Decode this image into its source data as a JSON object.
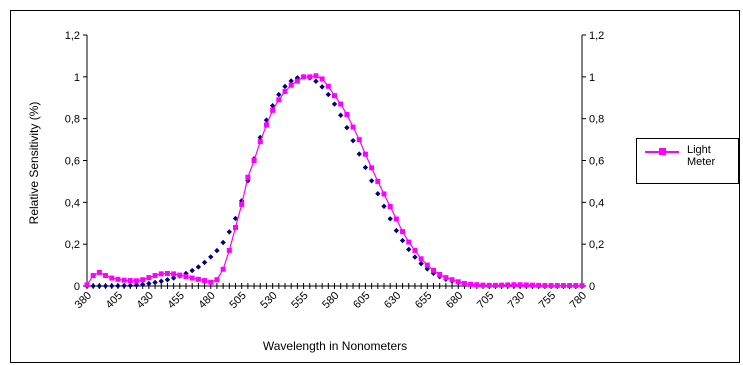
{
  "chart_data": {
    "type": "line",
    "title": "",
    "xlabel": "Wavelength in Nonometers",
    "ylabel": "Relative Sensitivity (%)",
    "xlim": [
      380,
      780
    ],
    "ylim": [
      0,
      1.2
    ],
    "x_tick_labels": [
      "380",
      "405",
      "430",
      "455",
      "480",
      "505",
      "530",
      "555",
      "580",
      "605",
      "630",
      "655",
      "680",
      "705",
      "730",
      "755",
      "780"
    ],
    "y_tick_labels": [
      "0",
      "0,2",
      "0,4",
      "0,6",
      "0,8",
      "1",
      "1,2"
    ],
    "grid": false,
    "legend": {
      "position": "right",
      "entries": [
        "Light Meter"
      ]
    },
    "x": [
      380,
      385,
      390,
      395,
      400,
      405,
      410,
      415,
      420,
      425,
      430,
      435,
      440,
      445,
      450,
      455,
      460,
      465,
      470,
      475,
      480,
      485,
      490,
      495,
      500,
      505,
      510,
      515,
      520,
      525,
      530,
      535,
      540,
      545,
      550,
      555,
      560,
      565,
      570,
      575,
      580,
      585,
      590,
      595,
      600,
      605,
      610,
      615,
      620,
      625,
      630,
      635,
      640,
      645,
      650,
      655,
      660,
      665,
      670,
      675,
      680,
      685,
      690,
      695,
      700,
      705,
      710,
      715,
      720,
      725,
      730,
      735,
      740,
      745,
      750,
      755,
      760,
      765,
      770,
      775,
      780
    ],
    "series": [
      {
        "name": "",
        "style": "markers",
        "color": "#000080",
        "values": [
          0.0,
          0.0001,
          0.0001,
          0.0002,
          0.0004,
          0.0006,
          0.0012,
          0.0022,
          0.004,
          0.0073,
          0.0116,
          0.0168,
          0.023,
          0.0298,
          0.038,
          0.048,
          0.06,
          0.0739,
          0.091,
          0.1126,
          0.139,
          0.1693,
          0.208,
          0.2586,
          0.323,
          0.4073,
          0.503,
          0.6082,
          0.71,
          0.7932,
          0.862,
          0.9149,
          0.954,
          0.9803,
          0.995,
          1.0,
          0.995,
          0.9786,
          0.952,
          0.9154,
          0.87,
          0.8163,
          0.757,
          0.6949,
          0.631,
          0.5668,
          0.503,
          0.4412,
          0.381,
          0.321,
          0.265,
          0.217,
          0.175,
          0.1382,
          0.107,
          0.0816,
          0.061,
          0.0446,
          0.032,
          0.0232,
          0.017,
          0.0119,
          0.0082,
          0.0057,
          0.0041,
          0.0029,
          0.0021,
          0.0015,
          0.001,
          0.0007,
          0.0005,
          0.0004,
          0.0002,
          0.0002,
          0.0001,
          0.0001,
          0.0001,
          0.0,
          0.0,
          0.0,
          0.0
        ]
      },
      {
        "name": "Light Meter",
        "style": "line-markers",
        "color": "#ff00ff",
        "values": [
          0.005,
          0.05,
          0.065,
          0.05,
          0.038,
          0.032,
          0.028,
          0.026,
          0.025,
          0.03,
          0.04,
          0.05,
          0.058,
          0.06,
          0.058,
          0.052,
          0.045,
          0.038,
          0.032,
          0.026,
          0.018,
          0.03,
          0.08,
          0.17,
          0.28,
          0.39,
          0.52,
          0.6,
          0.69,
          0.77,
          0.84,
          0.89,
          0.93,
          0.96,
          0.98,
          1.0,
          1.0,
          1.005,
          0.99,
          0.955,
          0.91,
          0.87,
          0.82,
          0.76,
          0.7,
          0.63,
          0.565,
          0.5,
          0.44,
          0.38,
          0.32,
          0.26,
          0.21,
          0.17,
          0.13,
          0.1,
          0.075,
          0.055,
          0.04,
          0.03,
          0.02,
          0.012,
          0.008,
          0.006,
          0.004,
          0.003,
          0.003,
          0.004,
          0.005,
          0.006,
          0.006,
          0.005,
          0.004,
          0.003,
          0.002,
          0.002,
          0.002,
          0.002,
          0.002,
          0.002,
          0.002
        ]
      }
    ]
  }
}
